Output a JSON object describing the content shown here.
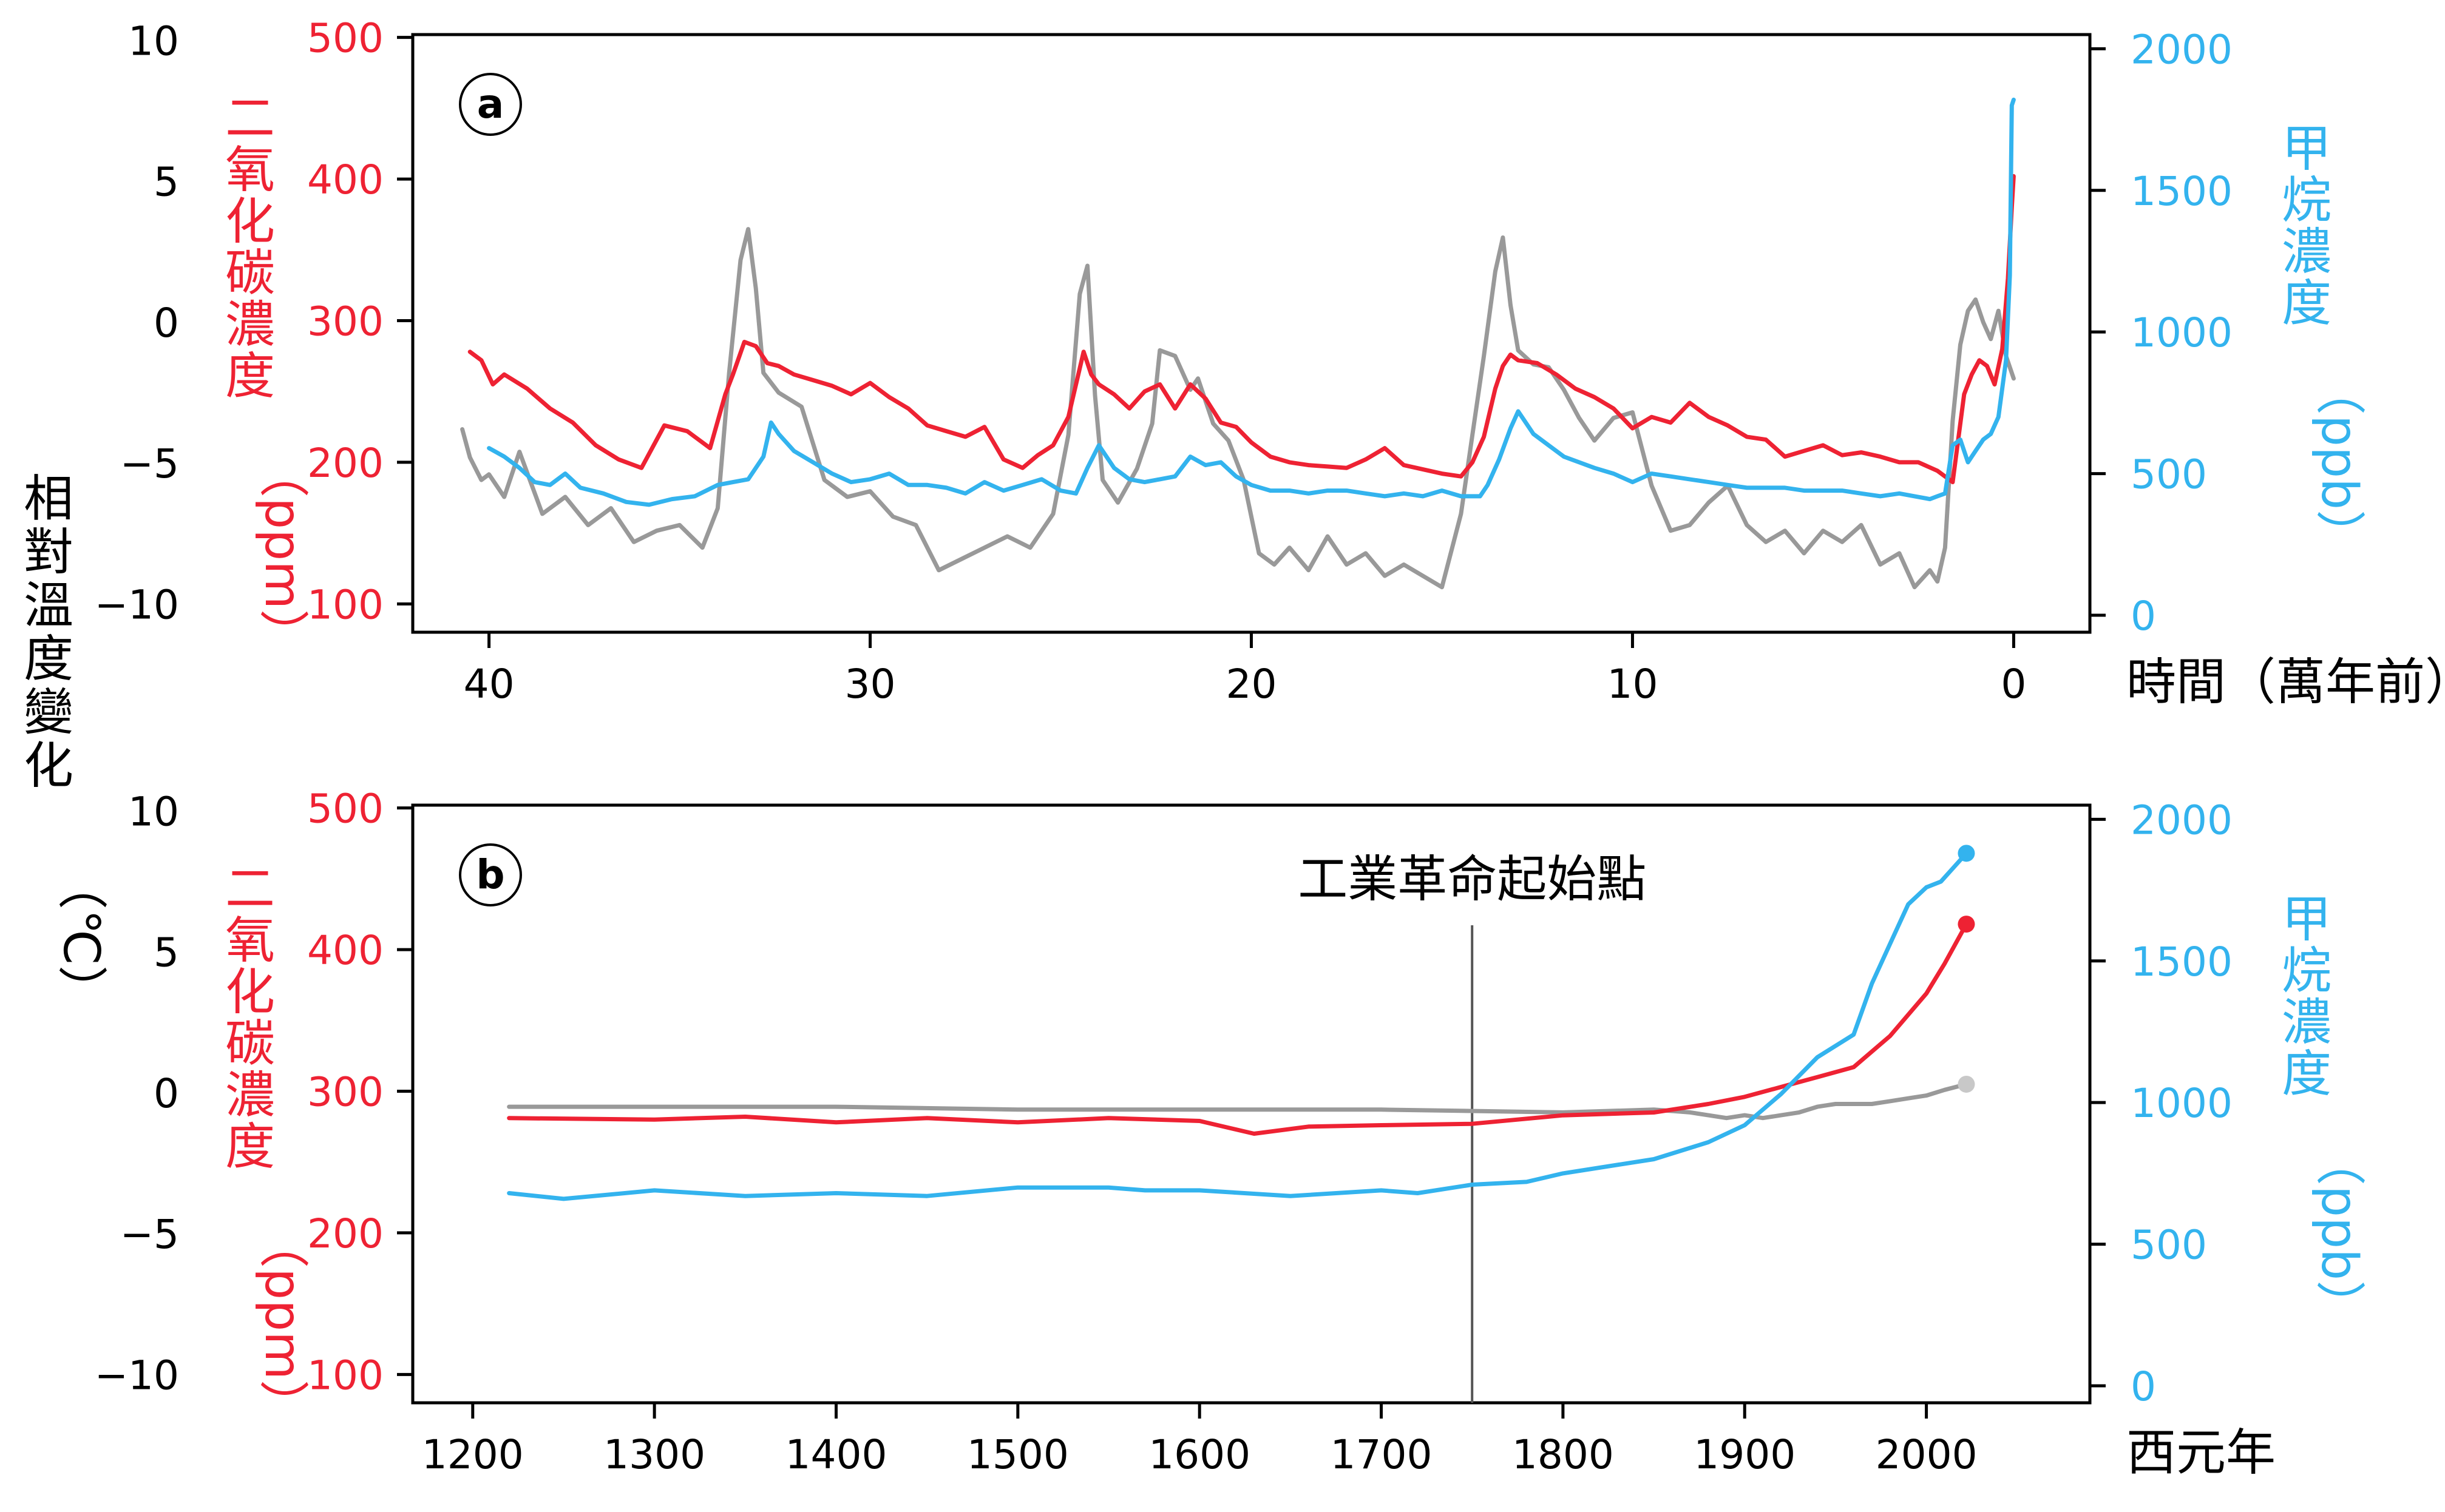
{
  "colors": {
    "temperature": "#999999",
    "temperature_end_marker": "#c8c8c8",
    "co2": "#ee2233",
    "methane": "#33b3ee",
    "axis": "#000000"
  },
  "shared_ylabel_temp": {
    "chars": [
      "相",
      "對",
      "溫",
      "度",
      "變",
      "化"
    ],
    "unit": "（℃）"
  },
  "chart_data": [
    {
      "panel": "a",
      "type": "line",
      "xlabel": "時間（萬年前）",
      "x_ticks": [
        "40",
        "30",
        "20",
        "10",
        "0"
      ],
      "xlim": [
        42,
        -2
      ],
      "x_reversed": true,
      "temp_ylabel": "相對溫度變化（℃）",
      "temp_ticks": [
        "10",
        "5",
        "0",
        "−5",
        "−10"
      ],
      "temp_ylim": [
        -11,
        10.2
      ],
      "co2_ylabel": {
        "chars": [
          "二",
          "氧",
          "化",
          "碳",
          "濃",
          "度"
        ],
        "unit": "（ppm）"
      },
      "co2_ticks": [
        "500",
        "400",
        "300",
        "200",
        "100"
      ],
      "co2_ylim": [
        80,
        502
      ],
      "ch4_ylabel": {
        "chars": [
          "甲",
          "烷",
          "濃",
          "度"
        ],
        "unit": "（ppb）"
      },
      "ch4_ticks": [
        "2000",
        "1500",
        "1000",
        "500",
        "0"
      ],
      "ch4_ylim": [
        -60,
        2050
      ],
      "series": [
        {
          "name": "相對溫度變化",
          "axis": "temp",
          "x": [
            40.7,
            40.5,
            40.2,
            40.0,
            39.6,
            39.2,
            38.6,
            38.0,
            37.4,
            36.8,
            36.2,
            35.6,
            35.0,
            34.4,
            34.0,
            33.7,
            33.4,
            33.2,
            33.0,
            32.8,
            32.4,
            31.8,
            31.2,
            30.6,
            30.0,
            29.4,
            28.8,
            28.2,
            27.6,
            27.0,
            26.4,
            25.8,
            25.2,
            24.8,
            24.5,
            24.3,
            24.1,
            23.9,
            23.5,
            23.0,
            22.6,
            22.4,
            22.0,
            21.6,
            21.4,
            21.0,
            20.6,
            20.2,
            19.8,
            19.4,
            19.0,
            18.5,
            18.0,
            17.5,
            17.0,
            16.5,
            16.0,
            15.5,
            15.0,
            14.5,
            14.2,
            13.9,
            13.6,
            13.4,
            13.2,
            13.0,
            12.6,
            12.2,
            11.8,
            11.4,
            11.0,
            10.5,
            10.0,
            9.5,
            9.0,
            8.5,
            8.0,
            7.5,
            7.0,
            6.5,
            6.0,
            5.5,
            5.0,
            4.5,
            4.0,
            3.5,
            3.0,
            2.6,
            2.2,
            2.0,
            1.8,
            1.6,
            1.4,
            1.2,
            1.0,
            0.8,
            0.6,
            0.4,
            0.2,
            0.0
          ],
          "values": [
            -3.8,
            -4.8,
            -5.6,
            -5.4,
            -6.2,
            -4.6,
            -6.8,
            -6.2,
            -7.2,
            -6.6,
            -7.8,
            -7.4,
            -7.2,
            -8.0,
            -6.6,
            -1.8,
            2.2,
            3.3,
            1.2,
            -1.8,
            -2.5,
            -3.0,
            -5.6,
            -6.2,
            -6.0,
            -6.9,
            -7.2,
            -8.8,
            -8.4,
            -8.0,
            -7.6,
            -8.0,
            -6.8,
            -4.0,
            1.0,
            2.0,
            -2.6,
            -5.6,
            -6.4,
            -5.2,
            -3.6,
            -1.0,
            -1.2,
            -2.4,
            -2.0,
            -3.6,
            -4.2,
            -5.6,
            -8.2,
            -8.6,
            -8.0,
            -8.8,
            -7.6,
            -8.6,
            -8.2,
            -9.0,
            -8.6,
            -9.0,
            -9.4,
            -6.8,
            -4.0,
            -1.2,
            1.8,
            3.0,
            0.6,
            -1.0,
            -1.5,
            -1.6,
            -2.4,
            -3.4,
            -4.2,
            -3.4,
            -3.2,
            -5.8,
            -7.4,
            -7.2,
            -6.4,
            -5.8,
            -7.2,
            -7.8,
            -7.4,
            -8.2,
            -7.4,
            -7.8,
            -7.2,
            -8.6,
            -8.2,
            -9.4,
            -8.8,
            -9.2,
            -8.0,
            -3.5,
            -0.8,
            0.4,
            0.8,
            0.0,
            -0.6,
            0.4,
            -1.2,
            -2.0
          ]
        },
        {
          "name": "二氧化碳濃度",
          "axis": "co2",
          "x": [
            40.5,
            40.2,
            39.9,
            39.6,
            39.0,
            38.4,
            37.8,
            37.2,
            36.6,
            36.0,
            35.4,
            34.8,
            34.2,
            33.8,
            33.6,
            33.3,
            33.0,
            32.7,
            32.4,
            32.0,
            31.5,
            31.0,
            30.5,
            30.0,
            29.5,
            29.0,
            28.5,
            28.0,
            27.5,
            27.0,
            26.5,
            26.0,
            25.6,
            25.2,
            24.8,
            24.4,
            24.2,
            24.0,
            23.6,
            23.2,
            22.8,
            22.4,
            22.0,
            21.6,
            21.2,
            20.8,
            20.4,
            20.0,
            19.5,
            19.0,
            18.5,
            18.0,
            17.5,
            17.0,
            16.5,
            16.0,
            15.5,
            15.0,
            14.5,
            14.2,
            13.9,
            13.6,
            13.4,
            13.2,
            13.0,
            12.5,
            12.0,
            11.5,
            11.0,
            10.5,
            10.0,
            9.5,
            9.0,
            8.5,
            8.0,
            7.5,
            7.0,
            6.5,
            6.0,
            5.5,
            5.0,
            4.5,
            4.0,
            3.5,
            3.0,
            2.5,
            2.0,
            1.6,
            1.3,
            1.1,
            0.9,
            0.7,
            0.5,
            0.3,
            0.15,
            0.05,
            0.0
          ],
          "values": [
            278,
            272,
            255,
            262,
            252,
            238,
            228,
            212,
            202,
            196,
            226,
            222,
            210,
            248,
            262,
            285,
            282,
            270,
            268,
            262,
            258,
            254,
            248,
            256,
            246,
            238,
            226,
            222,
            218,
            225,
            202,
            196,
            205,
            212,
            232,
            278,
            262,
            255,
            248,
            238,
            250,
            255,
            238,
            255,
            245,
            228,
            225,
            214,
            204,
            200,
            198,
            197,
            196,
            202,
            210,
            198,
            195,
            192,
            190,
            200,
            218,
            252,
            268,
            276,
            272,
            270,
            262,
            252,
            246,
            238,
            224,
            232,
            228,
            242,
            232,
            226,
            218,
            216,
            204,
            208,
            212,
            205,
            207,
            204,
            200,
            200,
            194,
            186,
            248,
            262,
            272,
            268,
            255,
            280,
            330,
            380,
            402
          ]
        },
        {
          "name": "甲烷濃度",
          "axis": "ch4",
          "x": [
            40.0,
            39.6,
            39.2,
            38.8,
            38.4,
            38.0,
            37.6,
            37.0,
            36.4,
            35.8,
            35.2,
            34.6,
            34.0,
            33.6,
            33.2,
            32.8,
            32.6,
            32.4,
            32.0,
            31.5,
            31.0,
            30.5,
            30.0,
            29.5,
            29.0,
            28.5,
            28.0,
            27.5,
            27.0,
            26.5,
            26.0,
            25.5,
            25.0,
            24.6,
            24.3,
            24.0,
            23.6,
            23.2,
            22.8,
            22.4,
            22.0,
            21.6,
            21.2,
            20.8,
            20.4,
            20.0,
            19.5,
            19.0,
            18.5,
            18.0,
            17.5,
            17.0,
            16.5,
            16.0,
            15.5,
            15.0,
            14.5,
            14.0,
            13.8,
            13.5,
            13.2,
            13.0,
            12.6,
            12.2,
            11.8,
            11.4,
            11.0,
            10.5,
            10.0,
            9.5,
            9.0,
            8.5,
            8.0,
            7.5,
            7.0,
            6.5,
            6.0,
            5.5,
            5.0,
            4.5,
            4.0,
            3.5,
            3.0,
            2.6,
            2.2,
            2.0,
            1.8,
            1.6,
            1.4,
            1.2,
            1.0,
            0.8,
            0.6,
            0.4,
            0.2,
            0.1,
            0.05,
            0.0
          ],
          "values": [
            590,
            560,
            520,
            470,
            460,
            500,
            450,
            430,
            400,
            390,
            410,
            420,
            460,
            470,
            480,
            560,
            680,
            640,
            580,
            540,
            500,
            470,
            480,
            500,
            460,
            460,
            450,
            430,
            470,
            440,
            460,
            480,
            440,
            430,
            520,
            600,
            520,
            480,
            470,
            480,
            490,
            560,
            530,
            540,
            490,
            460,
            440,
            440,
            430,
            440,
            440,
            430,
            420,
            430,
            420,
            440,
            420,
            420,
            460,
            550,
            660,
            720,
            640,
            600,
            560,
            540,
            520,
            500,
            470,
            500,
            490,
            480,
            470,
            460,
            450,
            450,
            450,
            440,
            440,
            440,
            430,
            420,
            430,
            420,
            410,
            420,
            430,
            600,
            620,
            540,
            580,
            620,
            640,
            700,
            900,
            1200,
            1800,
            1820
          ]
        }
      ]
    },
    {
      "panel": "b",
      "type": "line",
      "xlabel": "西元年",
      "x_ticks": [
        "1200",
        "1300",
        "1400",
        "1500",
        "1600",
        "1700",
        "1800",
        "1900",
        "2000"
      ],
      "xlim": [
        1167,
        2090
      ],
      "temp_ylabel": "相對溫度變化（℃）",
      "temp_ticks": [
        "10",
        "5",
        "0",
        "−5",
        "−10"
      ],
      "temp_ylim": [
        -11,
        10.2
      ],
      "co2_ylabel": {
        "chars": [
          "二",
          "氧",
          "化",
          "碳",
          "濃",
          "度"
        ],
        "unit": "（ppm）"
      },
      "co2_ticks": [
        "500",
        "400",
        "300",
        "200",
        "100"
      ],
      "co2_ylim": [
        80,
        502
      ],
      "ch4_ylabel": {
        "chars": [
          "甲",
          "烷",
          "濃",
          "度"
        ],
        "unit": "（ppb）"
      },
      "ch4_ticks": [
        "2000",
        "1500",
        "1000",
        "500",
        "0"
      ],
      "ch4_ylim": [
        -60,
        2050
      ],
      "annotation": {
        "label": "工業革命起始點",
        "x": 1750
      },
      "series": [
        {
          "name": "相對溫度變化",
          "axis": "temp",
          "x": [
            1220,
            1300,
            1400,
            1500,
            1600,
            1700,
            1800,
            1850,
            1870,
            1880,
            1890,
            1900,
            1910,
            1920,
            1930,
            1940,
            1950,
            1960,
            1970,
            1980,
            1990,
            2000,
            2010,
            2022
          ],
          "values": [
            -0.5,
            -0.5,
            -0.5,
            -0.6,
            -0.6,
            -0.6,
            -0.7,
            -0.6,
            -0.7,
            -0.8,
            -0.9,
            -0.8,
            -0.9,
            -0.8,
            -0.7,
            -0.5,
            -0.4,
            -0.4,
            -0.4,
            -0.3,
            -0.2,
            -0.1,
            0.1,
            0.3
          ],
          "end_marker": true
        },
        {
          "name": "二氧化碳濃度",
          "axis": "co2",
          "x": [
            1220,
            1300,
            1350,
            1400,
            1450,
            1500,
            1550,
            1600,
            1630,
            1660,
            1700,
            1750,
            1800,
            1850,
            1880,
            1900,
            1920,
            1940,
            1960,
            1980,
            2000,
            2010,
            2022
          ],
          "values": [
            281,
            280,
            282,
            278,
            281,
            278,
            281,
            279,
            270,
            275,
            276,
            277,
            283,
            285,
            291,
            296,
            303,
            310,
            317,
            339,
            369,
            390,
            418
          ],
          "end_marker": true
        },
        {
          "name": "甲烷濃度",
          "axis": "ch4",
          "x": [
            1220,
            1250,
            1300,
            1350,
            1400,
            1450,
            1500,
            1550,
            1570,
            1600,
            1650,
            1700,
            1720,
            1750,
            1780,
            1800,
            1850,
            1880,
            1900,
            1920,
            1940,
            1960,
            1970,
            1980,
            1990,
            2000,
            2008,
            2015,
            2022
          ],
          "values": [
            680,
            660,
            690,
            670,
            680,
            670,
            700,
            700,
            690,
            690,
            670,
            690,
            680,
            710,
            720,
            750,
            800,
            860,
            920,
            1030,
            1160,
            1240,
            1420,
            1560,
            1700,
            1760,
            1780,
            1830,
            1880
          ],
          "end_marker": true
        }
      ]
    }
  ]
}
